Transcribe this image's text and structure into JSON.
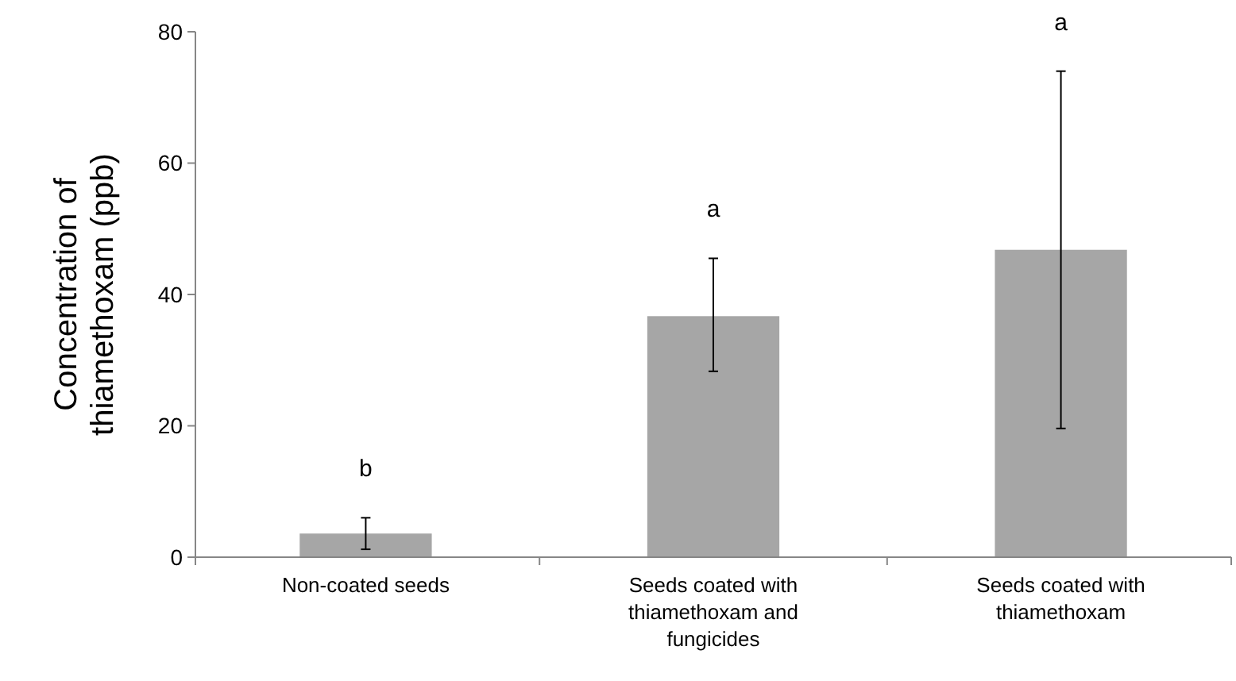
{
  "chart_data": {
    "type": "bar",
    "ylabel": "Concentration of\nthiamethoxam  (ppb)",
    "categories": [
      "Non-coated seeds",
      "Seeds coated with thiamethoxam and fungicides",
      "Seeds coated with thiamethoxam"
    ],
    "values": [
      3.6,
      36.7,
      46.8
    ],
    "errors": [
      [
        1.2,
        6
      ],
      [
        28.3,
        45.5
      ],
      [
        19.6,
        74
      ]
    ],
    "color": "#a6a6a6",
    "ylim": [
      0,
      80
    ],
    "yticks": [
      0,
      20,
      40,
      60,
      80
    ],
    "grid": false,
    "annotations": [
      {
        "text": "b",
        "x": "Non-coated seeds",
        "y": 6
      },
      {
        "text": "a",
        "x": "Seeds coated with thiamethoxam and fungicides",
        "y": 45.5
      },
      {
        "text": "a",
        "x": "Seeds coated with thiamethoxam",
        "y": 74
      }
    ]
  }
}
